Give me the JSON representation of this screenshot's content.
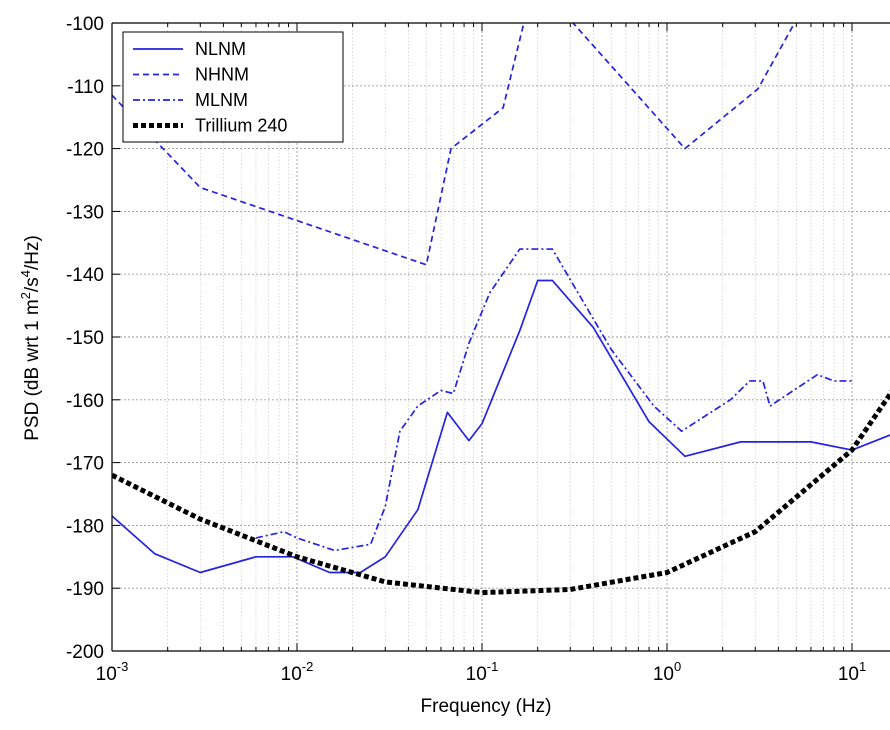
{
  "chart_data": {
    "type": "line",
    "xscale": "log",
    "xlim": [
      0.001,
      20
    ],
    "ylim": [
      -200,
      -100
    ],
    "grid": true,
    "legend_position": "top-left",
    "xlabel": "Frequency (Hz)",
    "ylabel": "PSD (dB wrt 1 m²/s⁴/Hz)",
    "ylabel_parts": {
      "pre": "PSD (dB wrt 1 m",
      "sup1": "2",
      "mid": "/s",
      "sup2": "4",
      "post": "/Hz)"
    },
    "x_ticks": [
      {
        "value": 0.001,
        "base": "10",
        "exp": "-3"
      },
      {
        "value": 0.01,
        "base": "10",
        "exp": "-2"
      },
      {
        "value": 0.1,
        "base": "10",
        "exp": "-1"
      },
      {
        "value": 1,
        "base": "10",
        "exp": "0"
      },
      {
        "value": 10,
        "base": "10",
        "exp": "1"
      }
    ],
    "y_ticks": [
      -100,
      -110,
      -120,
      -130,
      -140,
      -150,
      -160,
      -170,
      -180,
      -190,
      -200
    ],
    "series": [
      {
        "name": "NLNM",
        "color": "#2323e0",
        "style": "solid",
        "points": [
          [
            0.001,
            -178.5
          ],
          [
            0.0017,
            -184.5
          ],
          [
            0.003,
            -187.5
          ],
          [
            0.006,
            -185
          ],
          [
            0.0095,
            -185
          ],
          [
            0.015,
            -187.5
          ],
          [
            0.022,
            -187.5
          ],
          [
            0.03,
            -185
          ],
          [
            0.045,
            -177.5
          ],
          [
            0.065,
            -162
          ],
          [
            0.085,
            -166.5
          ],
          [
            0.1,
            -163.8
          ],
          [
            0.16,
            -149
          ],
          [
            0.2,
            -141
          ],
          [
            0.24,
            -141
          ],
          [
            0.4,
            -148.5
          ],
          [
            0.8,
            -163.5
          ],
          [
            1.25,
            -169
          ],
          [
            2.5,
            -166.7
          ],
          [
            6,
            -166.7
          ],
          [
            10,
            -168
          ],
          [
            20,
            -164.5
          ]
        ]
      },
      {
        "name": "NHNM",
        "color": "#2323e0",
        "style": "dashed",
        "points": [
          [
            0.001,
            -111.5
          ],
          [
            0.003,
            -126.2
          ],
          [
            0.05,
            -138.5
          ],
          [
            0.068,
            -120
          ],
          [
            0.13,
            -113.5
          ],
          [
            0.17,
            -99.5
          ],
          [
            0.3,
            -99.5
          ],
          [
            1.25,
            -120
          ],
          [
            3.1,
            -110.5
          ],
          [
            5,
            -99.5
          ]
        ]
      },
      {
        "name": "MLNM",
        "color": "#2323e0",
        "style": "dashdot",
        "points": [
          [
            0.006,
            -182
          ],
          [
            0.0085,
            -181
          ],
          [
            0.01,
            -182
          ],
          [
            0.016,
            -184
          ],
          [
            0.025,
            -183
          ],
          [
            0.03,
            -177
          ],
          [
            0.036,
            -165
          ],
          [
            0.045,
            -161
          ],
          [
            0.06,
            -158.5
          ],
          [
            0.07,
            -159
          ],
          [
            0.085,
            -151
          ],
          [
            0.11,
            -143
          ],
          [
            0.16,
            -136
          ],
          [
            0.24,
            -136
          ],
          [
            0.5,
            -152
          ],
          [
            0.85,
            -161
          ],
          [
            1.2,
            -165
          ],
          [
            2.2,
            -160
          ],
          [
            2.8,
            -157
          ],
          [
            3.3,
            -157
          ],
          [
            3.6,
            -161
          ],
          [
            6.5,
            -156
          ],
          [
            8,
            -157
          ],
          [
            10,
            -157
          ]
        ]
      },
      {
        "name": "Trillium 240",
        "color": "#000000",
        "style": "dotted",
        "points": [
          [
            0.001,
            -172
          ],
          [
            0.003,
            -179
          ],
          [
            0.01,
            -185
          ],
          [
            0.03,
            -189
          ],
          [
            0.1,
            -190.7
          ],
          [
            0.3,
            -190.2
          ],
          [
            1,
            -187.5
          ],
          [
            3,
            -181
          ],
          [
            10,
            -168
          ],
          [
            20,
            -155
          ]
        ]
      }
    ]
  }
}
